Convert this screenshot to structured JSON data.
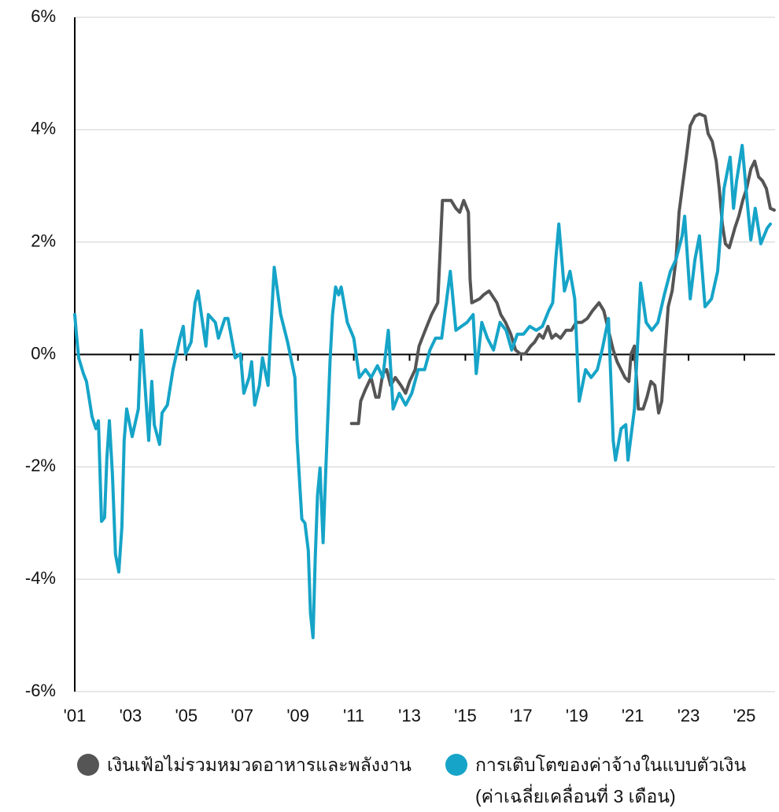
{
  "chart_data": {
    "type": "line",
    "xlim": [
      2001,
      2026.1
    ],
    "xticks": [
      {
        "value": 2001,
        "label": "'01"
      },
      {
        "value": 2003,
        "label": "'03"
      },
      {
        "value": 2005,
        "label": "'05"
      },
      {
        "value": 2007,
        "label": "'07"
      },
      {
        "value": 2009,
        "label": "'09"
      },
      {
        "value": 2011,
        "label": "'11"
      },
      {
        "value": 2013,
        "label": "'13"
      },
      {
        "value": 2015,
        "label": "'15"
      },
      {
        "value": 2017,
        "label": "'17"
      },
      {
        "value": 2019,
        "label": "'19"
      },
      {
        "value": 2021,
        "label": "'21"
      },
      {
        "value": 2023,
        "label": "'23"
      },
      {
        "value": 2025,
        "label": "'25"
      }
    ],
    "ylim": [
      -6,
      6
    ],
    "yticks": [
      {
        "value": -6,
        "label": "-6%"
      },
      {
        "value": -4,
        "label": "-4%"
      },
      {
        "value": -2,
        "label": "-2%"
      },
      {
        "value": 0,
        "label": "0%"
      },
      {
        "value": 2,
        "label": "2%"
      },
      {
        "value": 4,
        "label": "4%"
      },
      {
        "value": 6,
        "label": "6%"
      }
    ],
    "grid": true,
    "series": [
      {
        "name": "เงินเฟ้อไม่รวมหมวดอาหารและพลังงาน",
        "color": "#555555",
        "x": [
          2010.92,
          2011.17,
          2011.25,
          2011.42,
          2011.62,
          2011.79,
          2011.9,
          2012.04,
          2012.18,
          2012.32,
          2012.49,
          2012.69,
          2012.86,
          2013.0,
          2013.2,
          2013.34,
          2013.56,
          2013.79,
          2014.01,
          2014.18,
          2014.49,
          2014.66,
          2014.8,
          2014.94,
          2015.11,
          2015.17,
          2015.23,
          2015.51,
          2015.65,
          2015.85,
          2016.13,
          2016.27,
          2016.44,
          2016.63,
          2016.8,
          2016.97,
          2017.14,
          2017.34,
          2017.48,
          2017.65,
          2017.79,
          2017.96,
          2018.1,
          2018.24,
          2018.41,
          2018.61,
          2018.8,
          2018.97,
          2019.17,
          2019.37,
          2019.56,
          2019.79,
          2019.96,
          2020.13,
          2020.3,
          2020.44,
          2020.58,
          2020.72,
          2020.86,
          2020.94,
          2021.06,
          2021.2,
          2021.37,
          2021.51,
          2021.65,
          2021.79,
          2021.93,
          2022.04,
          2022.15,
          2022.27,
          2022.41,
          2022.55,
          2022.66,
          2022.77,
          2022.92,
          2023.06,
          2023.23,
          2023.39,
          2023.59,
          2023.7,
          2023.85,
          2023.99,
          2024.1,
          2024.21,
          2024.32,
          2024.46,
          2024.58,
          2024.66,
          2024.8,
          2024.94,
          2025.08,
          2025.23,
          2025.37,
          2025.51,
          2025.65,
          2025.79,
          2025.93,
          2026.07
        ],
        "values": [
          -1.23,
          -1.23,
          -0.83,
          -0.62,
          -0.41,
          -0.76,
          -0.76,
          -0.34,
          -0.27,
          -0.55,
          -0.41,
          -0.55,
          -0.69,
          -0.48,
          -0.27,
          0.15,
          0.43,
          0.71,
          0.92,
          2.74,
          2.74,
          2.6,
          2.53,
          2.74,
          2.53,
          1.34,
          0.92,
          0.99,
          1.06,
          1.13,
          0.92,
          0.71,
          0.57,
          0.36,
          0.08,
          0.01,
          0.01,
          0.15,
          0.22,
          0.36,
          0.29,
          0.5,
          0.29,
          0.36,
          0.29,
          0.43,
          0.43,
          0.57,
          0.57,
          0.64,
          0.78,
          0.92,
          0.78,
          0.43,
          0.08,
          -0.13,
          -0.27,
          -0.41,
          -0.48,
          0.01,
          0.15,
          -0.97,
          -0.97,
          -0.76,
          -0.48,
          -0.55,
          -1.04,
          -0.83,
          0.01,
          0.85,
          1.13,
          1.69,
          2.53,
          2.95,
          3.51,
          4.07,
          4.24,
          4.28,
          4.24,
          3.93,
          3.79,
          3.44,
          2.95,
          2.32,
          1.97,
          1.9,
          2.11,
          2.25,
          2.46,
          2.74,
          2.95,
          3.3,
          3.44,
          3.16,
          3.09,
          2.95,
          2.6,
          2.57
        ]
      },
      {
        "name": "การเติบโตของค่าจ้างในแบบตัวเงิน (ค่าเฉลี่ยเคลื่อนที่ 3 เดือน)",
        "color": "#16a4c8",
        "x": [
          2001.0,
          2001.06,
          2001.14,
          2001.31,
          2001.42,
          2001.62,
          2001.76,
          2001.85,
          2001.96,
          2002.07,
          2002.15,
          2002.24,
          2002.35,
          2002.46,
          2002.58,
          2002.69,
          2002.77,
          2002.86,
          2003.06,
          2003.28,
          2003.39,
          2003.48,
          2003.65,
          2003.76,
          2003.85,
          2004.04,
          2004.13,
          2004.32,
          2004.52,
          2004.77,
          2004.89,
          2004.97,
          2005.17,
          2005.31,
          2005.42,
          2005.62,
          2005.7,
          2005.79,
          2006.04,
          2006.15,
          2006.38,
          2006.49,
          2006.75,
          2006.94,
          2007.06,
          2007.25,
          2007.34,
          2007.45,
          2007.62,
          2007.73,
          2007.93,
          2008.01,
          2008.15,
          2008.38,
          2008.63,
          2008.89,
          2008.97,
          2009.14,
          2009.25,
          2009.37,
          2009.45,
          2009.54,
          2009.62,
          2009.7,
          2009.79,
          2009.9,
          2009.99,
          2010.15,
          2010.24,
          2010.35,
          2010.46,
          2010.55,
          2010.77,
          2011.0,
          2011.2,
          2011.42,
          2011.62,
          2011.85,
          2012.04,
          2012.24,
          2012.41,
          2012.63,
          2012.86,
          2013.08,
          2013.31,
          2013.54,
          2013.73,
          2013.93,
          2014.15,
          2014.35,
          2014.46,
          2014.66,
          2014.86,
          2015.06,
          2015.28,
          2015.39,
          2015.59,
          2015.79,
          2016.01,
          2016.24,
          2016.46,
          2016.66,
          2016.86,
          2017.08,
          2017.31,
          2017.54,
          2017.76,
          2017.99,
          2018.13,
          2018.24,
          2018.35,
          2018.55,
          2018.75,
          2018.92,
          2019.08,
          2019.31,
          2019.51,
          2019.73,
          2019.9,
          2020.13,
          2020.3,
          2020.38,
          2020.58,
          2020.75,
          2020.83,
          2021.06,
          2021.28,
          2021.48,
          2021.68,
          2021.9,
          2022.13,
          2022.35,
          2022.55,
          2022.77,
          2022.86,
          2023.06,
          2023.23,
          2023.39,
          2023.59,
          2023.82,
          2024.04,
          2024.27,
          2024.49,
          2024.61,
          2024.72,
          2024.92,
          2025.11,
          2025.23,
          2025.39,
          2025.59,
          2025.82,
          2025.93
        ],
        "values": [
          0.71,
          0.36,
          -0.06,
          -0.34,
          -0.48,
          -1.11,
          -1.32,
          -1.18,
          -2.97,
          -2.9,
          -1.85,
          -1.18,
          -2.14,
          -3.56,
          -3.87,
          -3.07,
          -1.53,
          -0.97,
          -1.46,
          -0.97,
          0.43,
          -0.27,
          -1.53,
          -0.48,
          -1.25,
          -1.6,
          -1.04,
          -0.9,
          -0.27,
          0.29,
          0.5,
          0.01,
          0.22,
          0.92,
          1.13,
          0.43,
          0.15,
          0.71,
          0.57,
          0.29,
          0.64,
          0.64,
          -0.06,
          0.01,
          -0.69,
          -0.41,
          -0.13,
          -0.9,
          -0.55,
          -0.06,
          -0.55,
          0.29,
          1.55,
          0.71,
          0.22,
          -0.41,
          -1.53,
          -2.93,
          -3.0,
          -3.49,
          -4.61,
          -5.04,
          -3.63,
          -2.51,
          -2.02,
          -3.35,
          -2.14,
          -0.13,
          0.71,
          1.2,
          1.06,
          1.2,
          0.57,
          0.29,
          -0.41,
          -0.27,
          -0.41,
          -0.2,
          -0.41,
          0.43,
          -0.97,
          -0.69,
          -0.9,
          -0.69,
          -0.27,
          -0.27,
          0.08,
          0.29,
          0.29,
          1.06,
          1.48,
          0.43,
          0.5,
          0.57,
          0.71,
          -0.34,
          0.57,
          0.29,
          0.08,
          0.57,
          0.43,
          0.08,
          0.36,
          0.36,
          0.5,
          0.43,
          0.5,
          0.78,
          0.92,
          1.69,
          2.32,
          1.13,
          1.48,
          0.99,
          -0.83,
          -0.27,
          -0.41,
          -0.27,
          0.08,
          0.64,
          -1.53,
          -1.88,
          -1.32,
          -1.25,
          -1.88,
          -0.97,
          1.27,
          0.57,
          0.43,
          0.57,
          1.06,
          1.48,
          1.69,
          2.11,
          2.46,
          0.99,
          1.69,
          2.11,
          0.85,
          0.99,
          1.48,
          2.95,
          3.51,
          2.6,
          3.09,
          3.72,
          2.67,
          2.04,
          2.6,
          1.97,
          2.25,
          2.32
        ]
      }
    ]
  }
}
